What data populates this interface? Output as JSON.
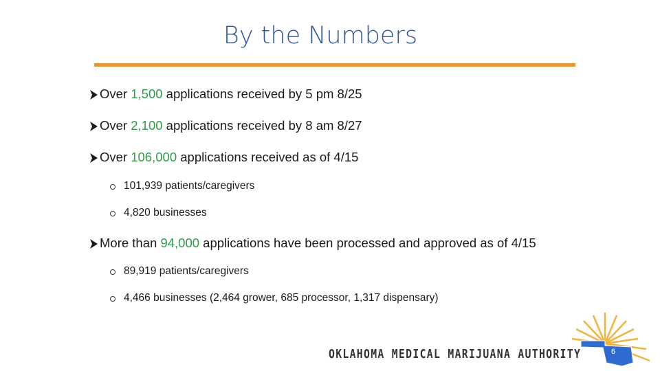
{
  "title": "By the Numbers",
  "bullets": [
    {
      "prefix": "Over ",
      "highlight": "1,500",
      "suffix": " applications received by 5 pm 8/25"
    },
    {
      "prefix": "Over ",
      "highlight": "2,100",
      "suffix": " applications received by 8 am 8/27"
    },
    {
      "prefix": "Over ",
      "highlight": "106,000",
      "suffix": " applications received as of 4/15",
      "sub": [
        "101,939 patients/caregivers",
        "4,820 businesses"
      ]
    },
    {
      "prefix": "More than ",
      "highlight": "94,000",
      "suffix": " applications have been processed and approved as of 4/15",
      "sub": [
        "89,919 patients/caregivers",
        "4,466 businesses (2,464 grower, 685 processor, 1,317 dispensary)"
      ]
    }
  ],
  "footer": {
    "logo_text": "OKLAHOMA MEDICAL MARIJUANA AUTHORITY",
    "page_number": "6"
  }
}
